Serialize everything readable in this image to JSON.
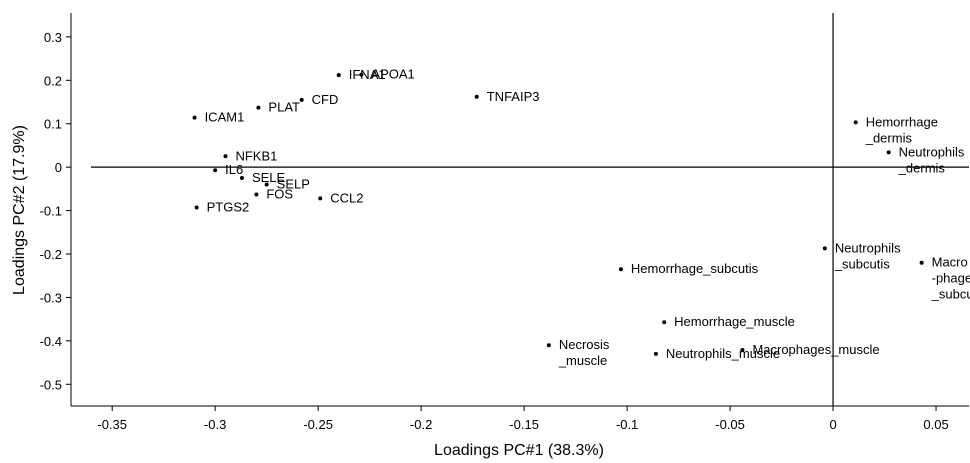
{
  "chart_data": {
    "type": "scatter",
    "xlabel": "Loadings PC#1 (38.3%)",
    "ylabel": "Loadings PC#2 (17.9%)",
    "xlim": [
      -0.37,
      0.066
    ],
    "ylim": [
      -0.55,
      0.355
    ],
    "xticks": [
      -0.35,
      -0.3,
      -0.25,
      -0.2,
      -0.15,
      -0.1,
      -0.05,
      0,
      0.05
    ],
    "xtick_labels": [
      "-0.35",
      "-0.3",
      "-0.25",
      "-0.2",
      "-0.15",
      "-0.1",
      "-0.05",
      "0",
      "0.05"
    ],
    "yticks": [
      0.3,
      0.2,
      0.1,
      0,
      -0.1,
      -0.2,
      -0.3,
      -0.4,
      -0.5
    ],
    "ytick_labels": [
      "0.3",
      "0.2",
      "0.1",
      "0",
      "-0.1",
      "-0.2",
      "-0.3",
      "-0.4",
      "-0.5"
    ],
    "reference_lines": {
      "x0": true,
      "y0": true
    },
    "grid": false,
    "points": [
      {
        "label": "APOA1",
        "x": -0.229,
        "y": 0.213
      },
      {
        "label": "IFNA1",
        "x": -0.24,
        "y": 0.212
      },
      {
        "label": "TNFAIP3",
        "x": -0.173,
        "y": 0.162
      },
      {
        "label": "CFD",
        "x": -0.258,
        "y": 0.155
      },
      {
        "label": "PLAT",
        "x": -0.279,
        "y": 0.137
      },
      {
        "label": "ICAM1",
        "x": -0.31,
        "y": 0.114
      },
      {
        "label": "NFKB1",
        "x": -0.295,
        "y": 0.025
      },
      {
        "label": "IL6",
        "x": -0.3,
        "y": -0.007
      },
      {
        "label": "SELE",
        "x": -0.287,
        "y": -0.025
      },
      {
        "label": "SELP",
        "x": -0.275,
        "y": -0.04
      },
      {
        "label": "FOS",
        "x": -0.28,
        "y": -0.063
      },
      {
        "label": "CCL2",
        "x": -0.249,
        "y": -0.072
      },
      {
        "label": "PTGS2",
        "x": -0.309,
        "y": -0.093
      },
      {
        "label": "Hemorrhage\n_dermis",
        "x": 0.011,
        "y": 0.103
      },
      {
        "label": "Neutrophils\n_dermis",
        "x": 0.027,
        "y": 0.034
      },
      {
        "label": "Neutrophils\n_subcutis",
        "x": -0.004,
        "y": -0.187
      },
      {
        "label": "Macro\n-phages\n_subcutis",
        "x": 0.043,
        "y": -0.22
      },
      {
        "label": "Hemorrhage_subcutis",
        "x": -0.103,
        "y": -0.235
      },
      {
        "label": "Hemorrhage_muscle",
        "x": -0.082,
        "y": -0.357
      },
      {
        "label": "Necrosis\n_muscle",
        "x": -0.138,
        "y": -0.41
      },
      {
        "label": "Macrophages_muscle",
        "x": -0.044,
        "y": -0.421
      },
      {
        "label": "Neutrophils_muscle",
        "x": -0.086,
        "y": -0.43
      }
    ]
  }
}
